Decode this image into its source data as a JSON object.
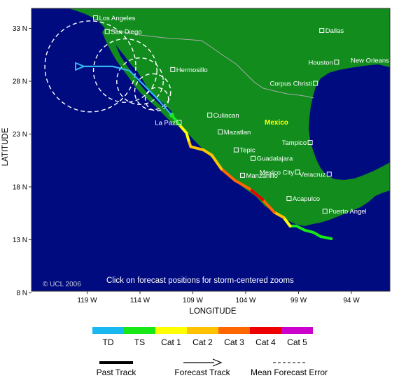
{
  "map": {
    "colors": {
      "ocean": "#000b80",
      "land": "#118c1d",
      "border": "#aaaaaa",
      "error_circle": "#ffffff",
      "forecast_track": "#33b5ef"
    },
    "credit": "© UCL 2006",
    "instruction": "Click on forecast positions for storm-centered zooms",
    "country_label": "Mexico",
    "x_axis": {
      "title": "LONGITUDE",
      "ticks": [
        "119 W",
        "114 W",
        "109 W",
        "104 W",
        "99 W",
        "94 W"
      ]
    },
    "y_axis": {
      "title": "LATITUDE",
      "ticks": [
        "33 N",
        "28 N",
        "23 N",
        "18 N",
        "13 N",
        "8 N"
      ]
    },
    "cities": [
      {
        "name": "Los Angeles",
        "lon": -118.2,
        "lat": 34.0,
        "side": "right"
      },
      {
        "name": "San Diego",
        "lon": -117.1,
        "lat": 32.7,
        "side": "right"
      },
      {
        "name": "Dallas",
        "lon": -96.8,
        "lat": 32.8,
        "side": "right"
      },
      {
        "name": "Hermosillo",
        "lon": -110.9,
        "lat": 29.1,
        "side": "right"
      },
      {
        "name": "Houston",
        "lon": -95.4,
        "lat": 29.8,
        "side": "left"
      },
      {
        "name": "New Orleans",
        "lon": -90.1,
        "lat": 30.0,
        "side": "left"
      },
      {
        "name": "Corpus Christi",
        "lon": -97.4,
        "lat": 27.8,
        "side": "left"
      },
      {
        "name": "Culiacan",
        "lon": -107.4,
        "lat": 24.8,
        "side": "right"
      },
      {
        "name": "La Paz",
        "lon": -110.3,
        "lat": 24.1,
        "side": "left"
      },
      {
        "name": "Mazatlan",
        "lon": -106.4,
        "lat": 23.2,
        "side": "right"
      },
      {
        "name": "Tampico",
        "lon": -97.9,
        "lat": 22.2,
        "side": "left"
      },
      {
        "name": "Tepic",
        "lon": -104.9,
        "lat": 21.5,
        "side": "right"
      },
      {
        "name": "Guadalajara",
        "lon": -103.3,
        "lat": 20.7,
        "side": "right"
      },
      {
        "name": "Mexico City",
        "lon": -99.1,
        "lat": 19.4,
        "side": "left"
      },
      {
        "name": "Veracruz",
        "lon": -96.1,
        "lat": 19.2,
        "side": "left"
      },
      {
        "name": "Manzanillo",
        "lon": -104.3,
        "lat": 19.1,
        "side": "right"
      },
      {
        "name": "Acapulco",
        "lon": -99.9,
        "lat": 16.9,
        "side": "right"
      },
      {
        "name": "Puerto Angel",
        "lon": -96.5,
        "lat": 15.7,
        "side": "right"
      }
    ],
    "storm_track": [
      {
        "lon": -95.9,
        "lat": 13.1,
        "category": "TS"
      },
      {
        "lon": -96.9,
        "lat": 13.3,
        "category": "TS"
      },
      {
        "lon": -97.6,
        "lat": 13.7,
        "category": "TS"
      },
      {
        "lon": -98.4,
        "lat": 13.9,
        "category": "TS"
      },
      {
        "lon": -99.2,
        "lat": 14.3,
        "category": "TS"
      },
      {
        "lon": -99.8,
        "lat": 14.3,
        "category": "Cat 1"
      },
      {
        "lon": -100.4,
        "lat": 15.1,
        "category": "Cat 2"
      },
      {
        "lon": -101.3,
        "lat": 15.6,
        "category": "Cat 3"
      },
      {
        "lon": -102.4,
        "lat": 16.8,
        "category": "Cat 4"
      },
      {
        "lon": -103.6,
        "lat": 17.8,
        "category": "Cat 3"
      },
      {
        "lon": -105.0,
        "lat": 18.6,
        "category": "Cat 3"
      },
      {
        "lon": -106.3,
        "lat": 19.7,
        "category": "Cat 2"
      },
      {
        "lon": -107.2,
        "lat": 21.0,
        "category": "Cat 2"
      },
      {
        "lon": -108.0,
        "lat": 21.5,
        "category": "Cat 2"
      },
      {
        "lon": -109.2,
        "lat": 21.8,
        "category": "Cat 2"
      },
      {
        "lon": -109.4,
        "lat": 22.4,
        "category": "Cat 1"
      },
      {
        "lon": -109.6,
        "lat": 23.1,
        "category": "Cat 1"
      },
      {
        "lon": -110.3,
        "lat": 23.9,
        "category": "TS"
      },
      {
        "lon": -111.0,
        "lat": 24.8,
        "category": "TS"
      }
    ],
    "forecast_track": [
      {
        "lon": -111.0,
        "lat": 24.8
      },
      {
        "lon": -112.6,
        "lat": 26.6
      },
      {
        "lon": -114.0,
        "lat": 28.0
      },
      {
        "lon": -115.0,
        "lat": 29.0
      },
      {
        "lon": -116.6,
        "lat": 29.4
      },
      {
        "lon": -119.3,
        "lat": 29.4
      }
    ],
    "forecast_error_circles": [
      {
        "lon": -112.4,
        "lat": 26.3,
        "radius_deg": 1.1
      },
      {
        "lon": -112.8,
        "lat": 27.0,
        "radius_deg": 1.7
      },
      {
        "lon": -114.0,
        "lat": 28.0,
        "radius_deg": 2.2
      },
      {
        "lon": -115.4,
        "lat": 29.0,
        "radius_deg": 3.0
      },
      {
        "lon": -118.7,
        "lat": 29.4,
        "radius_deg": 4.3
      }
    ]
  },
  "legend": {
    "categories": [
      {
        "label": "TD",
        "color": "#19b8f0"
      },
      {
        "label": "TS",
        "color": "#18e818"
      },
      {
        "label": "Cat 1",
        "color": "#ffff00"
      },
      {
        "label": "Cat 2",
        "color": "#ffc200"
      },
      {
        "label": "Cat 3",
        "color": "#ff6600"
      },
      {
        "label": "Cat 4",
        "color": "#ee0000"
      },
      {
        "label": "Cat 5",
        "color": "#cc00cc"
      }
    ],
    "past_track_label": "Past Track",
    "forecast_track_label": "Forecast Track",
    "error_label": "Mean Forecast Error"
  }
}
